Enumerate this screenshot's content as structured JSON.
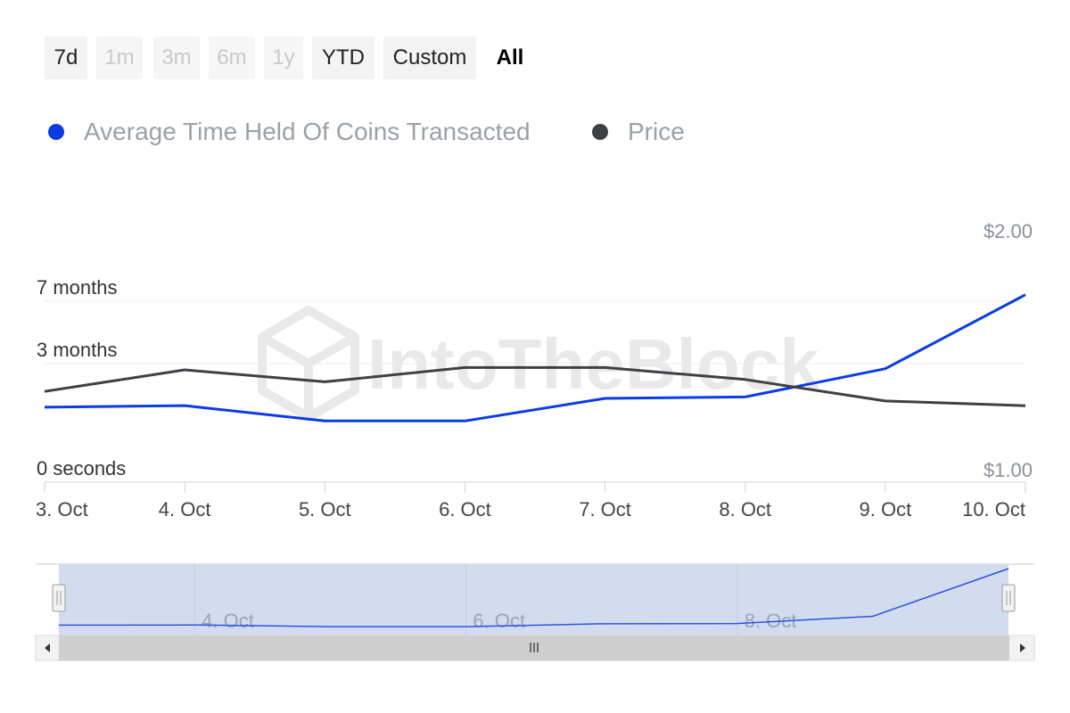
{
  "range_selector": {
    "buttons": [
      {
        "label": "7d",
        "state": "normal"
      },
      {
        "label": "1m",
        "state": "disabled"
      },
      {
        "label": "3m",
        "state": "disabled"
      },
      {
        "label": "6m",
        "state": "disabled"
      },
      {
        "label": "1y",
        "state": "disabled"
      },
      {
        "label": "YTD",
        "state": "normal"
      },
      {
        "label": "Custom",
        "state": "normal"
      },
      {
        "label": "All",
        "state": "active"
      }
    ]
  },
  "watermark": "IntoTheBlock",
  "colors": {
    "series_avg_time": "#0a3be6",
    "series_price": "#3d4044",
    "navigator_fill": "#d3dbef",
    "navigator_line": "#2b55e0",
    "scrollbar": "#cfcfcf"
  },
  "chart_data": {
    "type": "line",
    "title": "",
    "x": [
      "3. Oct",
      "4. Oct",
      "5. Oct",
      "6. Oct",
      "7. Oct",
      "8. Oct",
      "9. Oct",
      "10. Oct"
    ],
    "legend_position": "top-left",
    "series": [
      {
        "name": "Average Time Held Of Coins Transacted",
        "axis": "left",
        "unit": "months",
        "values": [
          1.2,
          1.25,
          0.8,
          0.8,
          1.5,
          1.55,
          2.75,
          7.5
        ]
      },
      {
        "name": "Price",
        "axis": "right",
        "unit": "USD",
        "values": [
          1.38,
          1.47,
          1.42,
          1.48,
          1.48,
          1.43,
          1.34,
          1.32
        ]
      }
    ],
    "left_axis": {
      "ticks": [
        {
          "value": 0,
          "label": "0 seconds"
        },
        {
          "value": 3,
          "label": "3 months"
        },
        {
          "value": 7,
          "label": "7 months"
        }
      ]
    },
    "right_axis": {
      "range": [
        1.0,
        2.0
      ],
      "ticks": [
        {
          "value": 1.0,
          "label": "$1.00"
        },
        {
          "value": 2.0,
          "label": "$2.00"
        }
      ]
    },
    "navigator": {
      "tick_labels": [
        {
          "index": 1,
          "label": "4. Oct"
        },
        {
          "index": 3,
          "label": "6. Oct"
        },
        {
          "index": 5,
          "label": "8. Oct"
        }
      ]
    },
    "grid": true
  }
}
